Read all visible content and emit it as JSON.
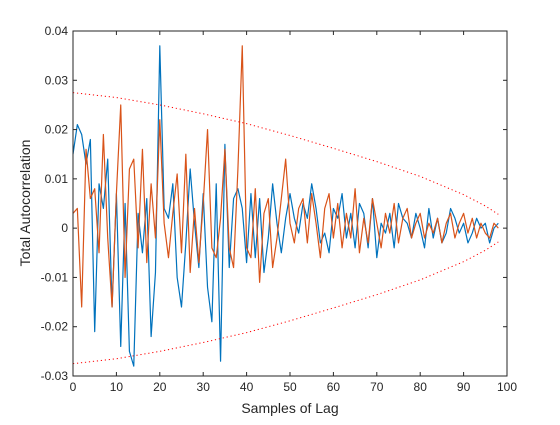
{
  "chart_data": {
    "type": "line",
    "title": "",
    "xlabel": "Samples of Lag",
    "ylabel": "Total Autocorrelation",
    "xlim": [
      0,
      100
    ],
    "ylim": [
      -0.03,
      0.04
    ],
    "xticks": [
      0,
      10,
      20,
      30,
      40,
      50,
      60,
      70,
      80,
      90,
      100
    ],
    "yticks": [
      -0.03,
      -0.02,
      -0.01,
      0,
      0.01,
      0.02,
      0.03,
      0.04
    ],
    "xtick_labels": [
      "0",
      "10",
      "20",
      "30",
      "40",
      "50",
      "60",
      "70",
      "80",
      "90",
      "100"
    ],
    "ytick_labels": [
      "-0.03",
      "-0.02",
      "-0.01",
      "0",
      "0.01",
      "0.02",
      "0.03",
      "0.04"
    ],
    "grid": false,
    "legend": "none",
    "series": [
      {
        "color": "#0072BD",
        "style": "solid",
        "x": [
          0,
          1,
          2,
          3,
          4,
          5,
          6,
          7,
          8,
          9,
          10,
          11,
          12,
          13,
          14,
          15,
          16,
          17,
          18,
          19,
          20,
          21,
          22,
          23,
          24,
          25,
          26,
          27,
          28,
          29,
          30,
          31,
          32,
          33,
          34,
          35,
          36,
          37,
          38,
          39,
          40,
          41,
          42,
          43,
          44,
          45,
          46,
          47,
          48,
          49,
          50,
          51,
          52,
          53,
          54,
          55,
          56,
          57,
          58,
          59,
          60,
          61,
          62,
          63,
          64,
          65,
          66,
          67,
          68,
          69,
          70,
          71,
          72,
          73,
          74,
          75,
          76,
          77,
          78,
          79,
          80,
          81,
          82,
          83,
          84,
          85,
          86,
          87,
          88,
          89,
          90,
          91,
          92,
          93,
          94,
          95,
          96,
          97,
          98
        ],
        "y": [
          0.015,
          0.021,
          0.019,
          0.013,
          0.018,
          -0.021,
          0.009,
          0.004,
          0.014,
          -0.016,
          0.007,
          -0.024,
          0.005,
          -0.025,
          -0.028,
          0.003,
          -0.005,
          0.006,
          -0.022,
          -0.009,
          0.037,
          0.004,
          0.002,
          0.009,
          -0.01,
          -0.016,
          -0.003,
          0.012,
          0.001,
          -0.008,
          0.007,
          -0.012,
          -0.019,
          0.009,
          -0.027,
          0.017,
          -0.008,
          0.006,
          0.008,
          0.004,
          -0.007,
          0.007,
          -0.006,
          0.006,
          -0.009,
          -0.002,
          0.009,
          0.001,
          -0.005,
          0.002,
          0.007,
          0.002,
          -0.001,
          0.005,
          0.002,
          0.009,
          0.004,
          -0.003,
          -0.001,
          -0.005,
          0.004,
          0.002,
          0.007,
          -0.002,
          0.003,
          -0.004,
          0.005,
          0.003,
          -0.004,
          0.006,
          -0.006,
          0.001,
          -0.001,
          0.003,
          -0.004,
          0.005,
          0.002,
          0.001,
          -0.002,
          0.003,
          0.0,
          -0.004,
          0.004,
          -0.002,
          0.002,
          -0.003,
          -0.001,
          0.004,
          0.002,
          -0.001,
          0.001,
          -0.003,
          -0.001,
          0.002,
          0.0,
          0.001,
          -0.003,
          0.0,
          0.001
        ]
      },
      {
        "color": "#D95319",
        "style": "solid",
        "x": [
          0,
          1,
          2,
          3,
          4,
          5,
          6,
          7,
          8,
          9,
          10,
          11,
          12,
          13,
          14,
          15,
          16,
          17,
          18,
          19,
          20,
          21,
          22,
          23,
          24,
          25,
          26,
          27,
          28,
          29,
          30,
          31,
          32,
          33,
          34,
          35,
          36,
          37,
          38,
          39,
          40,
          41,
          42,
          43,
          44,
          45,
          46,
          47,
          48,
          49,
          50,
          51,
          52,
          53,
          54,
          55,
          56,
          57,
          58,
          59,
          60,
          61,
          62,
          63,
          64,
          65,
          66,
          67,
          68,
          69,
          70,
          71,
          72,
          73,
          74,
          75,
          76,
          77,
          78,
          79,
          80,
          81,
          82,
          83,
          84,
          85,
          86,
          87,
          88,
          89,
          90,
          91,
          92,
          93,
          94,
          95,
          96,
          97,
          98
        ],
        "y": [
          0.003,
          0.004,
          -0.016,
          0.016,
          0.006,
          0.008,
          -0.005,
          0.019,
          -0.002,
          -0.016,
          0.007,
          0.025,
          -0.01,
          0.012,
          0.014,
          -0.004,
          0.016,
          -0.007,
          0.009,
          -0.002,
          0.022,
          0.001,
          -0.006,
          0.003,
          0.011,
          -0.005,
          0.015,
          -0.009,
          0.004,
          -0.007,
          0.005,
          0.02,
          -0.004,
          -0.006,
          0.002,
          0.016,
          -0.004,
          -0.008,
          0.012,
          0.037,
          -0.004,
          -0.006,
          0.008,
          -0.011,
          0.003,
          0.006,
          -0.008,
          -0.002,
          0.006,
          0.014,
          0.001,
          -0.003,
          0.004,
          0.006,
          -0.003,
          0.007,
          0.001,
          -0.006,
          0.004,
          0.007,
          -0.002,
          0.005,
          -0.004,
          0.003,
          -0.002,
          0.008,
          -0.005,
          0.002,
          -0.003,
          0.006,
          0.001,
          -0.004,
          0.003,
          -0.001,
          0.005,
          -0.003,
          0.002,
          0.004,
          -0.002,
          0.001,
          0.003,
          -0.002,
          0.001,
          -0.001,
          0.002,
          -0.003,
          0.001,
          0.003,
          -0.002,
          0.001,
          0.003,
          -0.001,
          0.002,
          -0.002,
          0.001,
          -0.001,
          -0.002,
          0.001,
          0.0
        ]
      },
      {
        "color": "#FF0000",
        "style": "dotted",
        "x": [
          0,
          10,
          20,
          30,
          40,
          50,
          60,
          70,
          80,
          90,
          95,
          98
        ],
        "y": [
          0.0275,
          0.0265,
          0.025,
          0.0232,
          0.0212,
          0.0188,
          0.0162,
          0.0135,
          0.0105,
          0.0068,
          0.0045,
          0.0028
        ]
      },
      {
        "color": "#FF0000",
        "style": "dotted",
        "x": [
          0,
          10,
          20,
          30,
          40,
          50,
          60,
          70,
          80,
          90,
          95,
          98
        ],
        "y": [
          -0.0275,
          -0.0265,
          -0.025,
          -0.0232,
          -0.0212,
          -0.0188,
          -0.0162,
          -0.0135,
          -0.0105,
          -0.0068,
          -0.0045,
          -0.0028
        ]
      }
    ]
  }
}
